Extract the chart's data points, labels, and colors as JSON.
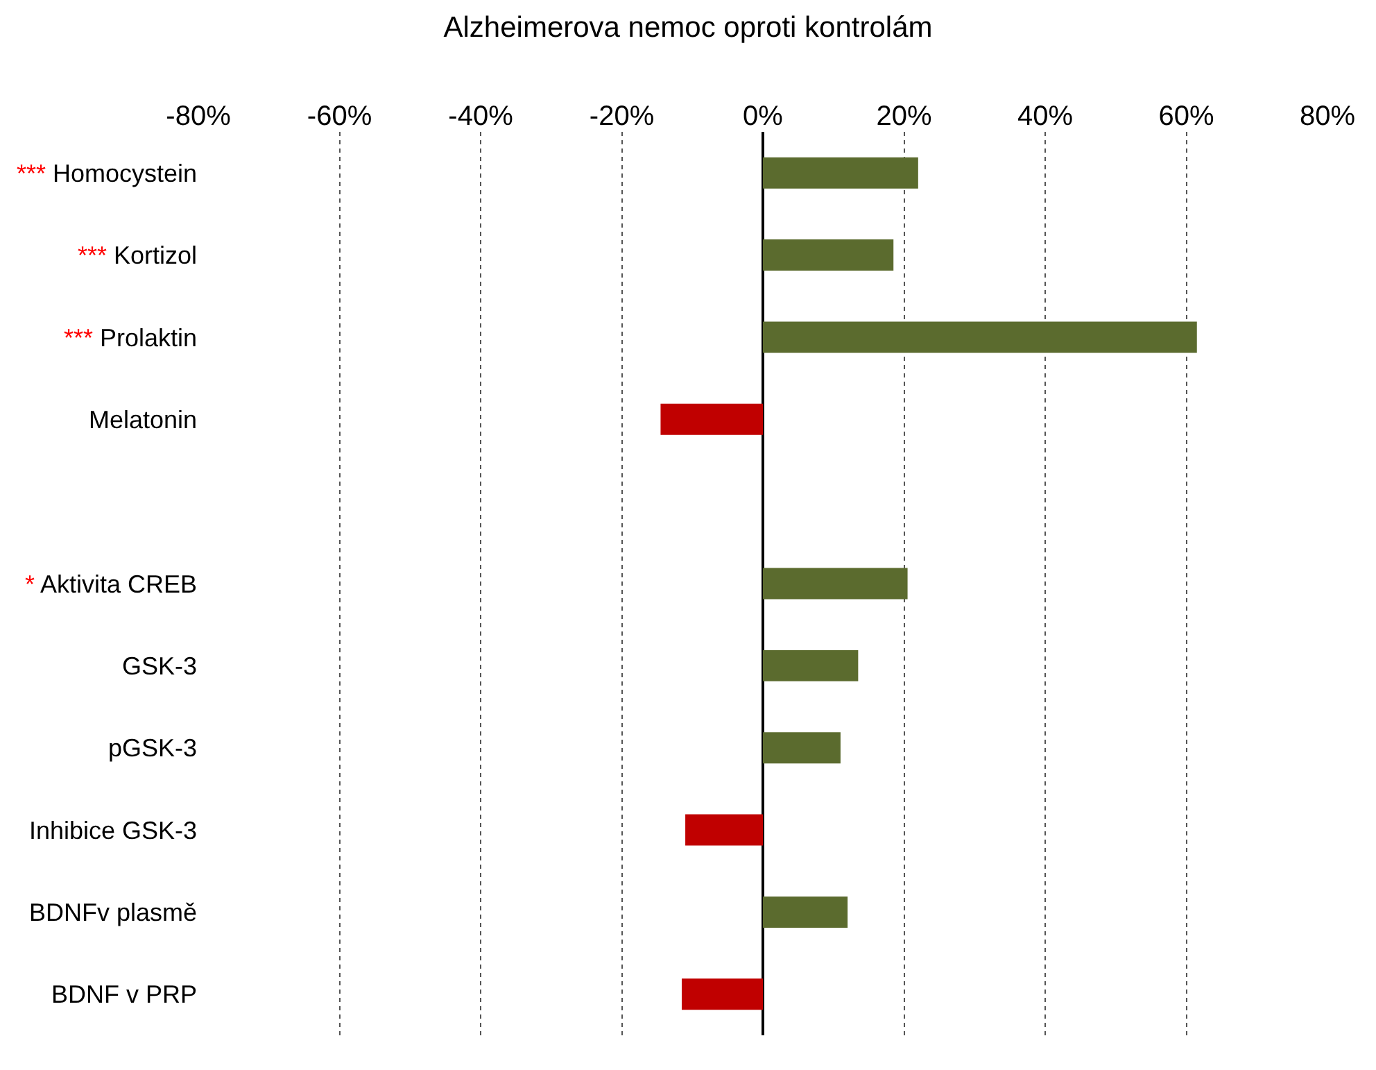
{
  "chart_data": {
    "type": "bar",
    "orientation": "horizontal",
    "title": "Alzheimerova nemoc oproti kontrolám",
    "categories": [
      "*** Homocystein",
      "*** Kortizol",
      "*** Prolaktin",
      "Melatonin",
      null,
      "* Aktivita CREB",
      "GSK-3",
      "pGSK-3",
      "Inhibice GSK-3",
      "BDNFv plasmě",
      "BDNF v PRP"
    ],
    "values": [
      22,
      18.5,
      61.5,
      -14.5,
      null,
      20.5,
      13.5,
      11,
      -11,
      12,
      -11.5
    ],
    "colors": [
      "#5b6b2e",
      "#5b6b2e",
      "#5b6b2e",
      "#c00000",
      null,
      "#5b6b2e",
      "#5b6b2e",
      "#5b6b2e",
      "#c00000",
      "#5b6b2e",
      "#c00000"
    ],
    "xlim": [
      -80,
      80
    ],
    "xticks": [
      {
        "value": -80,
        "label": "-80%"
      },
      {
        "value": -60,
        "label": "-60%"
      },
      {
        "value": -40,
        "label": "-40%"
      },
      {
        "value": -20,
        "label": "-20%"
      },
      {
        "value": 0,
        "label": "0%"
      },
      {
        "value": 20,
        "label": "20%"
      },
      {
        "value": 40,
        "label": "40%"
      },
      {
        "value": 60,
        "label": "60%"
      },
      {
        "value": 80,
        "label": "80%"
      }
    ],
    "grid": "x"
  }
}
